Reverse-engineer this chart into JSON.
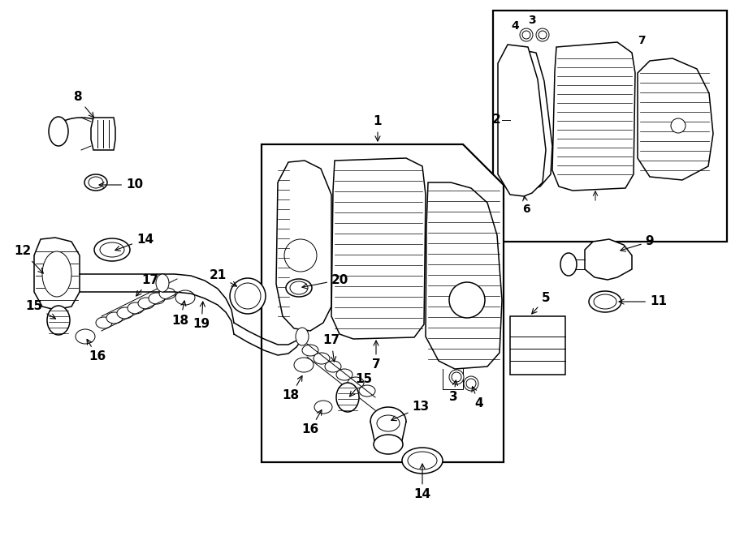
{
  "bg_color": "#ffffff",
  "line_color": "#000000",
  "figsize": [
    9.0,
    6.61
  ],
  "dpi": 100,
  "lw_thin": 0.7,
  "lw_med": 1.1,
  "lw_thick": 1.6
}
